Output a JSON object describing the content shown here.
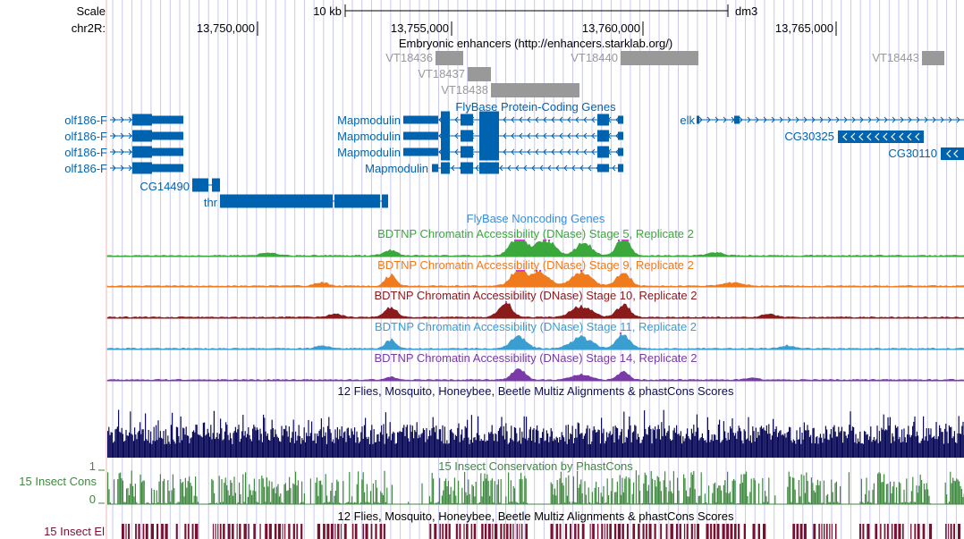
{
  "ruler": {
    "scale_label": "Scale",
    "chrom_label": "chr2R:",
    "scale_bar_label": "10 kb",
    "assembly": "dm3",
    "positions": [
      "13,750,000",
      "13,755,000",
      "13,760,000",
      "13,765,000"
    ]
  },
  "enhancers": {
    "title": "Embryonic enhancers (http://enhancers.starklab.org/)",
    "items": [
      "VT18436",
      "VT18437",
      "VT18438",
      "VT18440",
      "VT18443"
    ],
    "color": "#999999"
  },
  "genes": {
    "title": "FlyBase Protein-Coding Genes",
    "labels": {
      "olf186_f": "olf186-F",
      "cg14490": "CG14490",
      "thr": "thr",
      "mapmodulin": "Mapmodulin",
      "elk": "elk",
      "cg30325": "CG30325",
      "cg30110": "CG30110"
    },
    "color": "#0063b0"
  },
  "noncoding": {
    "title": "FlyBase Noncoding Genes",
    "color": "#3a8fd8"
  },
  "dnase_tracks": [
    {
      "title": "BDTNP Chromatin Accessibility (DNase) Stage 5, Replicate 2",
      "color": "#3aa83a"
    },
    {
      "title": "BDTNP Chromatin Accessibility (DNase) Stage 9, Replicate 2",
      "color": "#f07a1e"
    },
    {
      "title": "BDTNP Chromatin Accessibility (DNase) Stage 10, Replicate 2",
      "color": "#8b1a1a"
    },
    {
      "title": "BDTNP Chromatin Accessibility (DNase) Stage 11, Replicate 2",
      "color": "#3a9fd0"
    },
    {
      "title": "BDTNP Chromatin Accessibility (DNase) Stage 14, Replicate 2",
      "color": "#7a3aa8"
    }
  ],
  "multiz": {
    "title": "12 Flies, Mosquito, Honeybee, Beetle Multiz Alignments & phastCons Scores",
    "color": "#0c0c5a"
  },
  "cons": {
    "side_label": "15 Insect Cons",
    "title": "15 Insect Conservation by PhastCons",
    "axis_max": "1",
    "axis_min": "0",
    "color": "#3f8a3f"
  },
  "elements": {
    "side_label": "15 Insect El",
    "title": "12 Flies, Mosquito, Honeybee, Beetle Multiz Alignments & phastCons Scores",
    "color": "#7a1030"
  },
  "colors": {
    "grid": "#c8c8f0",
    "left_border": "#f2b4b4",
    "peak_highlight": "#d040d0"
  }
}
